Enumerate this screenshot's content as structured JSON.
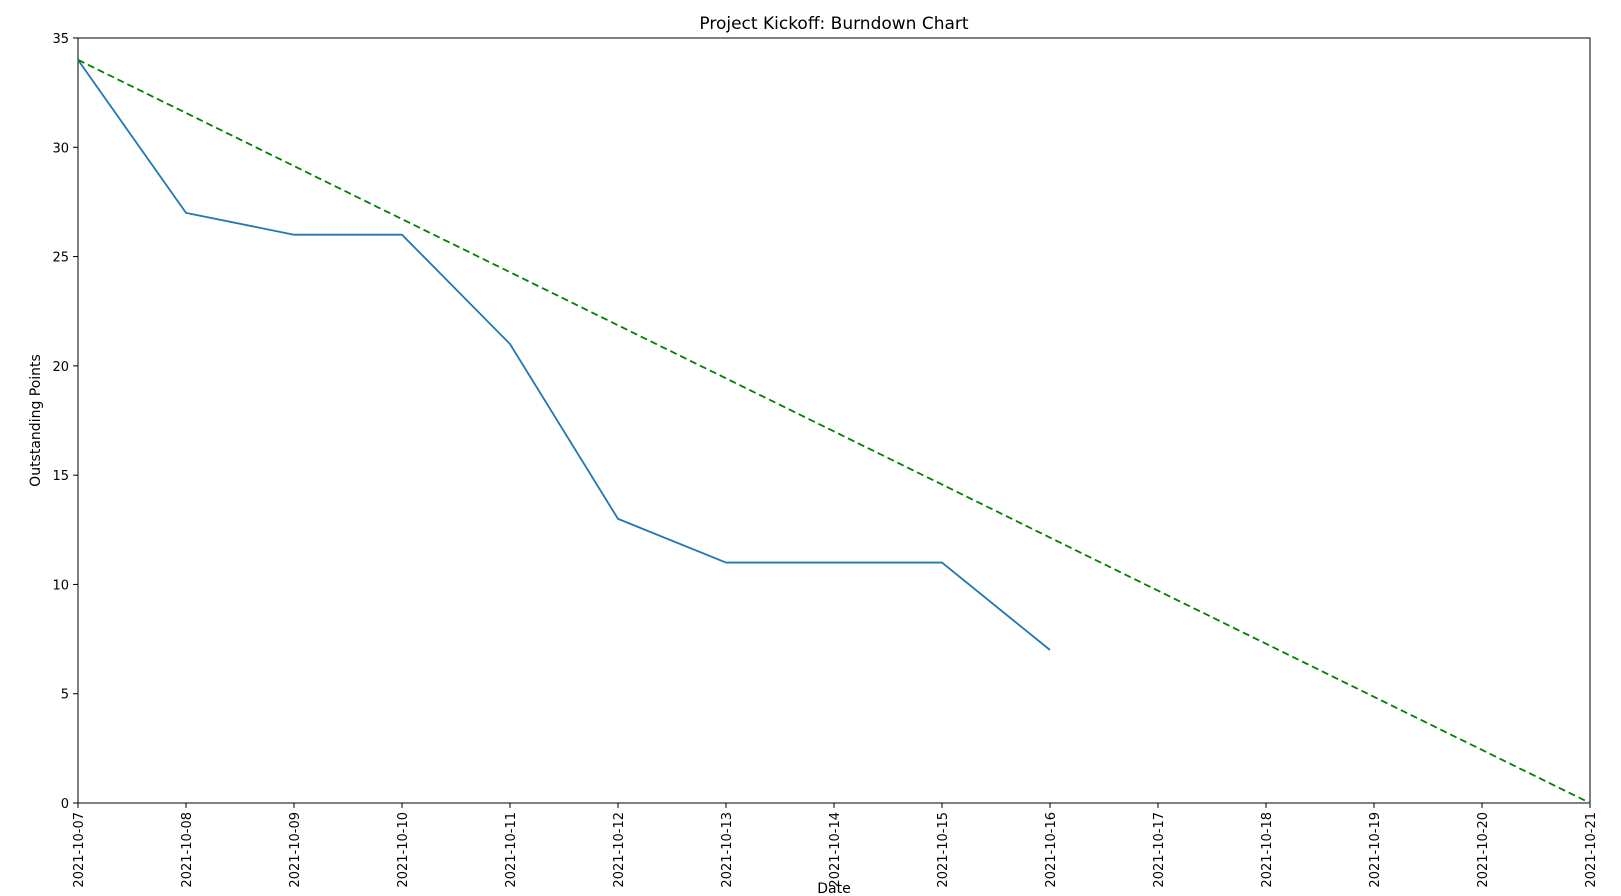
{
  "chart_data": {
    "type": "line",
    "title": "Project Kickoff: Burndown Chart",
    "xlabel": "Date",
    "ylabel": "Outstanding Points",
    "x": [
      "2021-10-07",
      "2021-10-08",
      "2021-10-09",
      "2021-10-10",
      "2021-10-11",
      "2021-10-12",
      "2021-10-13",
      "2021-10-14",
      "2021-10-15",
      "2021-10-16",
      "2021-10-17",
      "2021-10-18",
      "2021-10-19",
      "2021-10-20",
      "2021-10-21"
    ],
    "xlim": [
      "2021-10-07",
      "2021-10-21"
    ],
    "ylim": [
      0,
      35
    ],
    "yticks": [
      0,
      5,
      10,
      15,
      20,
      25,
      30,
      35
    ],
    "grid": false,
    "series": [
      {
        "style": "solid",
        "color": "#1f77b4",
        "points": [
          {
            "x": "2021-10-07",
            "y": 34
          },
          {
            "x": "2021-10-08",
            "y": 27
          },
          {
            "x": "2021-10-09",
            "y": 26
          },
          {
            "x": "2021-10-10",
            "y": 26
          },
          {
            "x": "2021-10-11",
            "y": 21
          },
          {
            "x": "2021-10-12",
            "y": 13
          },
          {
            "x": "2021-10-13",
            "y": 11
          },
          {
            "x": "2021-10-14",
            "y": 11
          },
          {
            "x": "2021-10-15",
            "y": 11
          },
          {
            "x": "2021-10-16",
            "y": 7
          }
        ]
      },
      {
        "style": "dashed",
        "color": "#008000",
        "points": [
          {
            "x": "2021-10-07",
            "y": 34
          },
          {
            "x": "2021-10-21",
            "y": 0
          }
        ]
      }
    ]
  }
}
